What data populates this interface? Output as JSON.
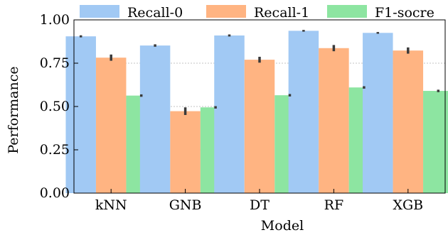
{
  "chart_data": {
    "type": "bar",
    "title": "",
    "xlabel": "Model",
    "ylabel": "Performance",
    "categories": [
      "kNN",
      "GNB",
      "DT",
      "RF",
      "XGB"
    ],
    "ylim": [
      0,
      1.0
    ],
    "yticks": [
      "0.00",
      "0.25",
      "0.50",
      "0.75",
      "1.00"
    ],
    "grid": "horizontal dashed",
    "legend_position": "top",
    "series": [
      {
        "name": "Recall-0",
        "color": "#a1c9f4",
        "values": [
          0.905,
          0.852,
          0.91,
          0.937,
          0.925
        ],
        "err": [
          0.006,
          0.007,
          0.006,
          0.005,
          0.005
        ]
      },
      {
        "name": "Recall-1",
        "color": "#ffb482",
        "values": [
          0.782,
          0.473,
          0.77,
          0.837,
          0.823
        ],
        "err": [
          0.018,
          0.022,
          0.017,
          0.018,
          0.018
        ]
      },
      {
        "name": "F1-socre",
        "color": "#8de5a1",
        "values": [
          0.563,
          0.495,
          0.565,
          0.61,
          0.59
        ],
        "err": [
          0.007,
          0.007,
          0.007,
          0.007,
          0.007
        ]
      }
    ]
  }
}
